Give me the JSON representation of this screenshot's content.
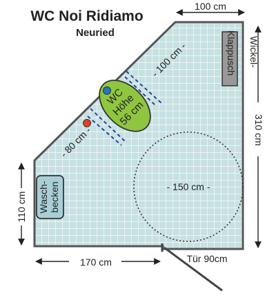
{
  "title": "WC Noi Ridiamo",
  "subtitle": "Neuried",
  "dimensions": {
    "top_width": "100 cm",
    "right_height": "310 cm",
    "left_height": "110 cm",
    "bottom_width": "170 cm",
    "door": "Tür 90cm",
    "diagonal_front": "- 100 cm -",
    "diagonal_side": "- 80 cm -",
    "turning_circle": "- 150 cm -"
  },
  "fixtures": {
    "changing_table": "Wickel-Klappusch",
    "changing_table_line1": "Wickel-",
    "changing_table_line2": "Klappusch",
    "wc_line1": "WC",
    "wc_line2": "Höhe",
    "wc_line3": "56 cm",
    "sink_line1": "Wasch-",
    "sink_line2": "becken"
  },
  "colors": {
    "floor_fill": "#c7e1e2",
    "grid": "#ffffff",
    "wall": "#555555",
    "wc_fill": "#8fc63f",
    "changing_table_fill": "#999999",
    "dimension_line": "#2b3f9c",
    "grab_bar_dot_blue": "#1f78c8",
    "grab_bar_dot_red": "#e2401f"
  }
}
